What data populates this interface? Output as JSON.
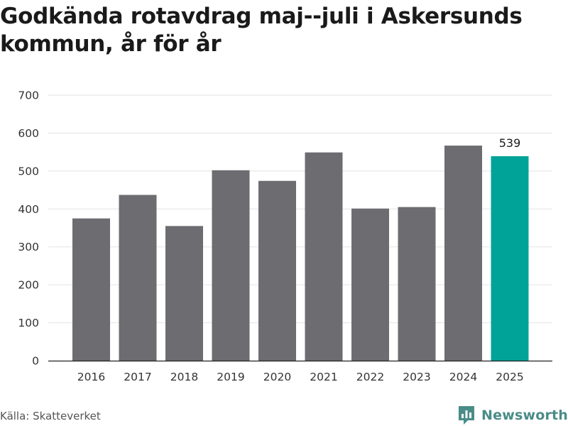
{
  "title": "Godkända rotavdrag maj--juli i Askersunds kommun, år för år",
  "source": "Källa: Skatteverket",
  "brand": "Newsworthy",
  "colors": {
    "bar": "#6d6c71",
    "highlight": "#00a398",
    "grid": "#e3e3e3",
    "axis": "#222222",
    "brand": "#4a8c87"
  },
  "chart_data": {
    "type": "bar",
    "title": "Godkända rotavdrag maj--juli i Askersunds kommun, år för år",
    "xlabel": "",
    "ylabel": "",
    "categories": [
      "2016",
      "2017",
      "2018",
      "2019",
      "2020",
      "2021",
      "2022",
      "2023",
      "2024",
      "2025"
    ],
    "values": [
      375,
      437,
      355,
      502,
      474,
      549,
      401,
      405,
      567,
      539
    ],
    "highlight_index": 9,
    "data_labels": [
      {
        "index": 9,
        "text": "539"
      }
    ],
    "ylim": [
      0,
      700
    ],
    "yticks": [
      0,
      100,
      200,
      300,
      400,
      500,
      600,
      700
    ],
    "grid": true
  }
}
